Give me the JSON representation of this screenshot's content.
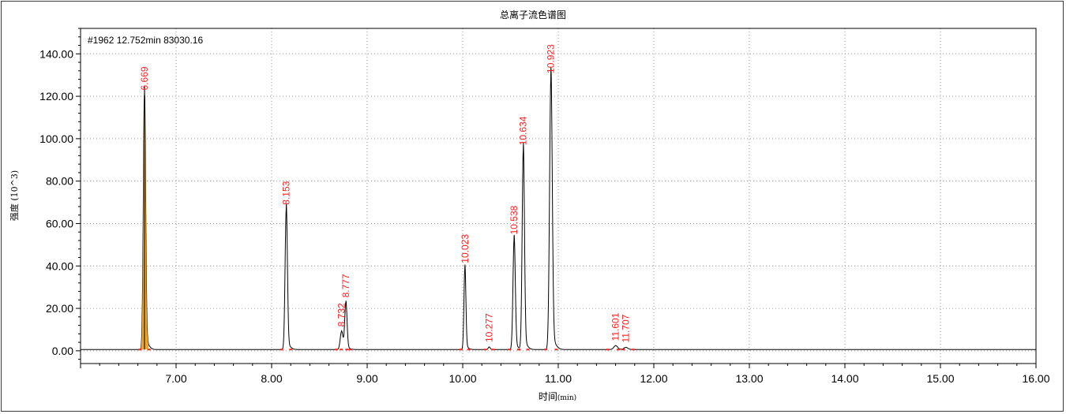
{
  "chart_data": {
    "type": "line",
    "title": "总离子流色谱图",
    "info": "#1962  12.752min  83030.16",
    "xlabel": "时间",
    "xlabel_unit": "(min)",
    "ylabel": "强度 (10^3)",
    "xlim": [
      6.0,
      16.0
    ],
    "ylim": [
      -6.0,
      152.0
    ],
    "xticks": [
      "7.00",
      "8.00",
      "9.00",
      "10.00",
      "11.00",
      "12.00",
      "13.00",
      "14.00",
      "15.00",
      "16.00"
    ],
    "xtick_values": [
      7,
      8,
      9,
      10,
      11,
      12,
      13,
      14,
      15,
      16
    ],
    "yticks": [
      "0.00",
      "20.00",
      "40.00",
      "60.00",
      "80.00",
      "100.00",
      "120.00",
      "140.00"
    ],
    "ytick_values": [
      0,
      20,
      40,
      60,
      80,
      100,
      120,
      140
    ],
    "grid": true,
    "baseline": 0.6,
    "highlight_color": "#f0a020",
    "line_color": "#000000",
    "label_color": "#ff2020",
    "peaks": [
      {
        "rt": 6.669,
        "label": "6.669",
        "height": 120.0,
        "width": 0.012,
        "highlight": true
      },
      {
        "rt": 8.153,
        "label": "8.153",
        "height": 66.0,
        "width": 0.012
      },
      {
        "rt": 8.732,
        "label": "8.732",
        "height": 8.5,
        "width": 0.014
      },
      {
        "rt": 8.777,
        "label": "8.777",
        "height": 22.0,
        "width": 0.012
      },
      {
        "rt": 10.023,
        "label": "10.023",
        "height": 38.5,
        "width": 0.01
      },
      {
        "rt": 10.277,
        "label": "10.277",
        "height": 1.2,
        "width": 0.01
      },
      {
        "rt": 10.538,
        "label": "10.538",
        "height": 52.0,
        "width": 0.012
      },
      {
        "rt": 10.634,
        "label": "10.634",
        "height": 94.0,
        "width": 0.012
      },
      {
        "rt": 10.923,
        "label": "10.923",
        "height": 128.0,
        "width": 0.014
      },
      {
        "rt": 11.601,
        "label": "11.601",
        "height": 1.8,
        "width": 0.02
      },
      {
        "rt": 11.707,
        "label": "11.707",
        "height": 1.0,
        "width": 0.02
      }
    ]
  }
}
